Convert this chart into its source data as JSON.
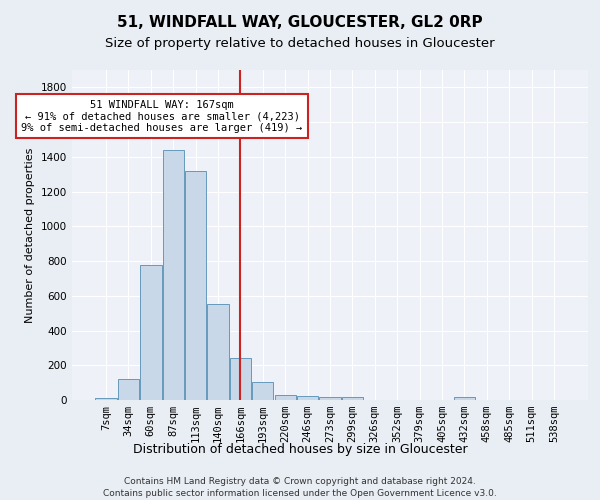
{
  "title": "51, WINDFALL WAY, GLOUCESTER, GL2 0RP",
  "subtitle": "Size of property relative to detached houses in Gloucester",
  "xlabel": "Distribution of detached houses by size in Gloucester",
  "ylabel": "Number of detached properties",
  "categories": [
    "7sqm",
    "34sqm",
    "60sqm",
    "87sqm",
    "113sqm",
    "140sqm",
    "166sqm",
    "193sqm",
    "220sqm",
    "246sqm",
    "273sqm",
    "299sqm",
    "326sqm",
    "352sqm",
    "379sqm",
    "405sqm",
    "432sqm",
    "458sqm",
    "485sqm",
    "511sqm",
    "538sqm"
  ],
  "values": [
    10,
    120,
    780,
    1440,
    1320,
    555,
    240,
    105,
    30,
    25,
    20,
    15,
    0,
    0,
    0,
    0,
    20,
    0,
    0,
    0,
    0
  ],
  "bar_color": "#c8d8e8",
  "bar_edge_color": "#6699bb",
  "vline_index": 6,
  "vline_color": "#cc2222",
  "annotation_text": "51 WINDFALL WAY: 167sqm\n← 91% of detached houses are smaller (4,223)\n9% of semi-detached houses are larger (419) →",
  "annotation_box_color": "#ffffff",
  "annotation_box_edge_color": "#cc2222",
  "ylim": [
    0,
    1900
  ],
  "yticks": [
    0,
    200,
    400,
    600,
    800,
    1000,
    1200,
    1400,
    1600,
    1800
  ],
  "bg_color": "#e8eef4",
  "plot_bg_color": "#eef2f8",
  "grid_color": "#ffffff",
  "footer_text": "Contains HM Land Registry data © Crown copyright and database right 2024.\nContains public sector information licensed under the Open Government Licence v3.0.",
  "title_fontsize": 11,
  "subtitle_fontsize": 9.5,
  "xlabel_fontsize": 9,
  "ylabel_fontsize": 8,
  "tick_fontsize": 7.5,
  "annotation_fontsize": 7.5,
  "footer_fontsize": 6.5
}
